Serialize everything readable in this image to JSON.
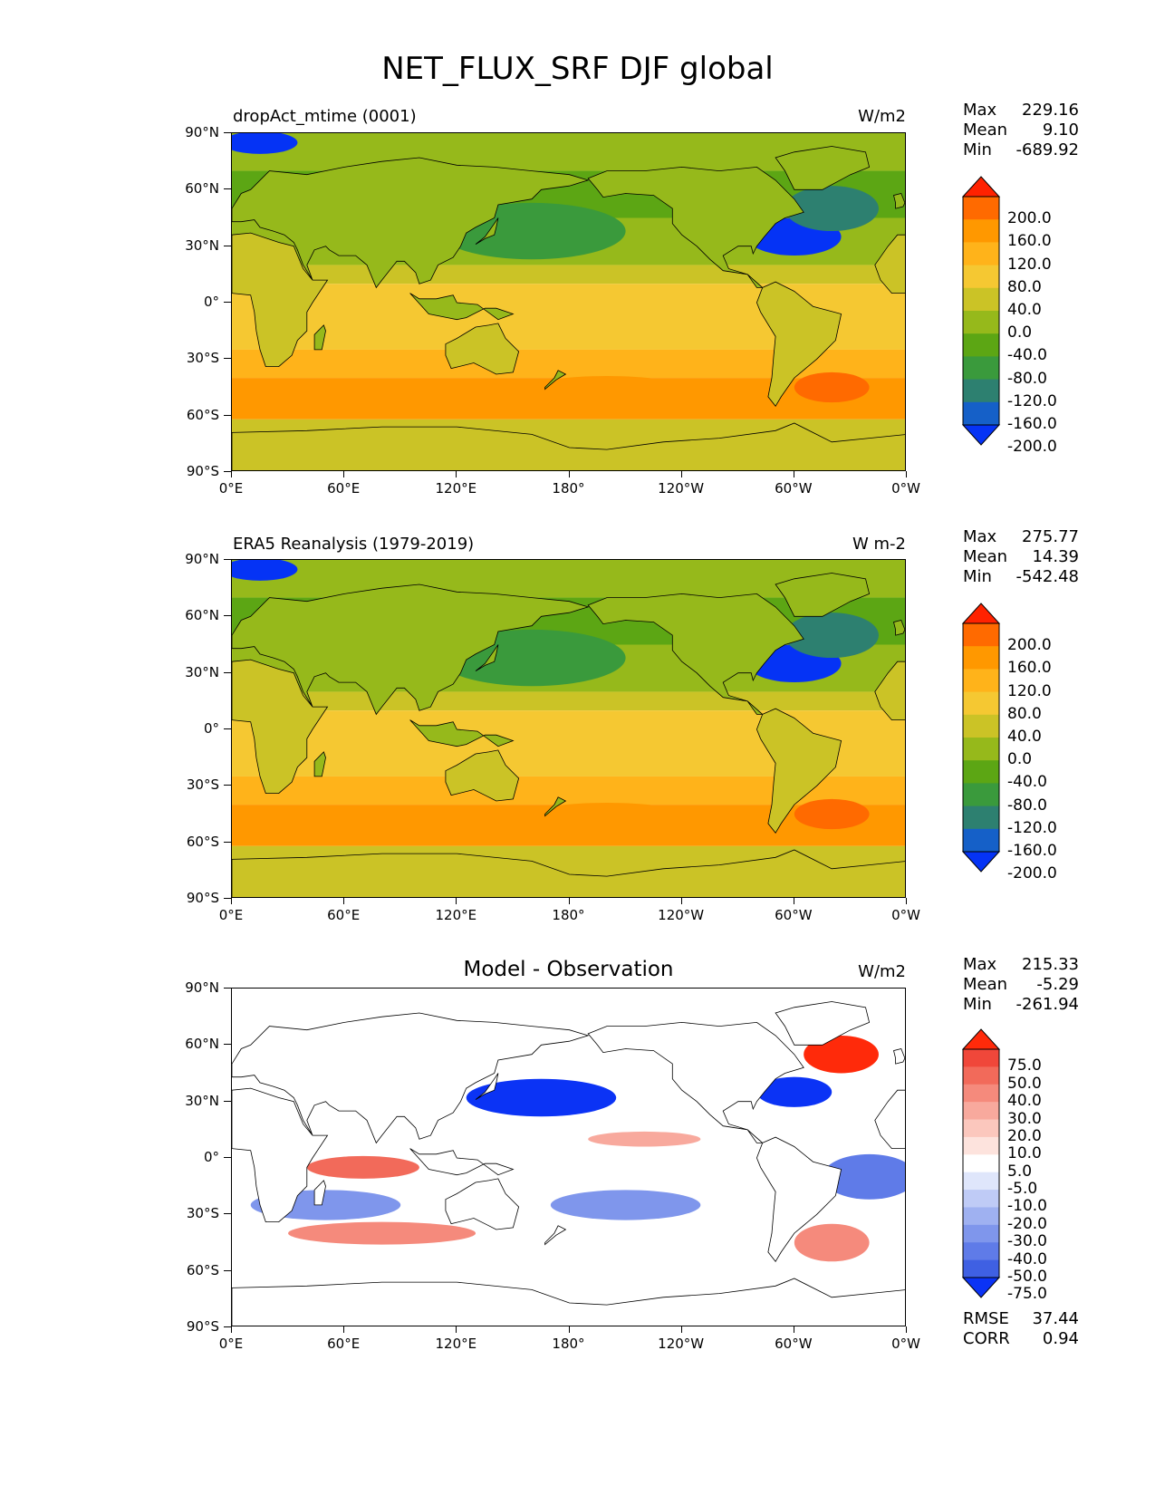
{
  "suptitle": "NET_FLUX_SRF DJF global",
  "lat_ticks": [
    "90°N",
    "60°N",
    "30°N",
    "0°",
    "30°S",
    "60°S",
    "90°S"
  ],
  "lon_ticks": [
    "0°E",
    "60°E",
    "120°E",
    "180°",
    "120°W",
    "60°W",
    "0°W"
  ],
  "panels": [
    {
      "title_left": "dropAct_mtime (0001)",
      "title_center": "",
      "units": "W/m2",
      "stats": {
        "max_label": "Max",
        "max": "229.16",
        "mean_label": "Mean",
        "mean": "9.10",
        "min_label": "Min",
        "min": "-689.92"
      },
      "colorbar": {
        "labels": [
          "200.0",
          "160.0",
          "120.0",
          "80.0",
          "40.0",
          "0.0",
          "-40.0",
          "-80.0",
          "-120.0",
          "-160.0",
          "-200.0"
        ],
        "colors": [
          "#ff2200",
          "#ff6a00",
          "#ff9800",
          "#ffb31a",
          "#f5c832",
          "#cbc326",
          "#96b91b",
          "#5ca614",
          "#3a9a3c",
          "#2d8070",
          "#1560c8",
          "#0533f5"
        ]
      }
    },
    {
      "title_left": "ERA5 Reanalysis (1979-2019)",
      "title_center": "",
      "units": "W m-2",
      "stats": {
        "max_label": "Max",
        "max": "275.77",
        "mean_label": "Mean",
        "mean": "14.39",
        "min_label": "Min",
        "min": "-542.48"
      },
      "colorbar": {
        "labels": [
          "200.0",
          "160.0",
          "120.0",
          "80.0",
          "40.0",
          "0.0",
          "-40.0",
          "-80.0",
          "-120.0",
          "-160.0",
          "-200.0"
        ],
        "colors": [
          "#ff2200",
          "#ff6a00",
          "#ff9800",
          "#ffb31a",
          "#f5c832",
          "#cbc326",
          "#96b91b",
          "#5ca614",
          "#3a9a3c",
          "#2d8070",
          "#1560c8",
          "#0533f5"
        ]
      }
    },
    {
      "title_left": "",
      "title_center": "Model - Observation",
      "units": "W/m2",
      "stats": {
        "max_label": "Max",
        "max": "215.33",
        "mean_label": "Mean",
        "mean": "-5.29",
        "min_label": "Min",
        "min": "-261.94"
      },
      "colorbar": {
        "labels": [
          "75.0",
          "50.0",
          "40.0",
          "30.0",
          "20.0",
          "10.0",
          "5.0",
          "-5.0",
          "-10.0",
          "-20.0",
          "-30.0",
          "-40.0",
          "-50.0",
          "-75.0"
        ],
        "colors": [
          "#ff2a0a",
          "#f0473a",
          "#f26a5a",
          "#f58a7c",
          "#f8a99d",
          "#fbc7bd",
          "#fde3dd",
          "#ffffff",
          "#dfe6fb",
          "#bfcbf6",
          "#9fb1f1",
          "#7f96ec",
          "#5f7be8",
          "#3f60e3",
          "#0b33f5"
        ]
      },
      "extra": {
        "rmse_label": "RMSE",
        "rmse": "37.44",
        "corr_label": "CORR",
        "corr": "0.94"
      }
    }
  ]
}
